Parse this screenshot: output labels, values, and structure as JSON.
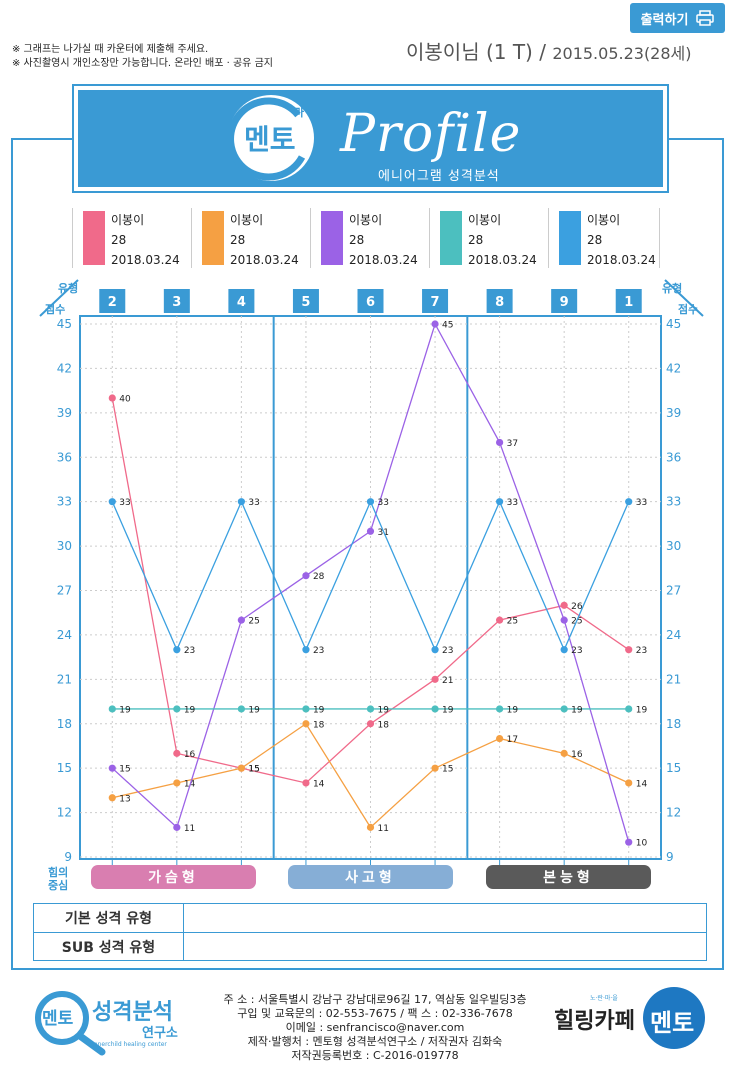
{
  "toolbar": {
    "print_label": "출력하기"
  },
  "notices": [
    "※ 그래프는 나가실 때 카운터에 제출해 주세요.",
    "※ 사진촬영시 개인소장만 가능합니다. 온라인 배포 · 공유 금지"
  ],
  "header": {
    "name": "이봉이님 (1 T) /",
    "date": "2015.05.23(28세)"
  },
  "banner": {
    "logo_text": "멘토",
    "logo_small": "마",
    "title": "Profile",
    "subtitle": "에니어그램 성격분석"
  },
  "legend": [
    {
      "name": "이봉이",
      "age": "28",
      "date": "2018.03.24",
      "color": "#f06a8a"
    },
    {
      "name": "이봉이",
      "age": "28",
      "date": "2018.03.24",
      "color": "#f5a043"
    },
    {
      "name": "이봉이",
      "age": "28",
      "date": "2018.03.24",
      "color": "#9b62e6"
    },
    {
      "name": "이봉이",
      "age": "28",
      "date": "2018.03.24",
      "color": "#4cbfbf"
    },
    {
      "name": "이봉이",
      "age": "28",
      "date": "2018.03.24",
      "color": "#3ba0e0"
    }
  ],
  "axis_labels": {
    "type_left": "유형",
    "score_left": "점수",
    "type_right": "유형",
    "score_right": "점수",
    "center_line1": "힘의",
    "center_line2": "중심"
  },
  "groups": [
    {
      "label": "가슴형",
      "color": "#d97eb0"
    },
    {
      "label": "사고형",
      "color": "#86aed6"
    },
    {
      "label": "본능형",
      "color": "#5a5a5a"
    }
  ],
  "summary": {
    "basic_label": "기본 성격 유형",
    "sub_label": "SUB 성격 유형"
  },
  "footer": {
    "lines": [
      "주 소 : 서울특별시 강남구 강남대로96길 17, 역삼동 일우빌딩3층",
      "구입 및 교육문의 : 02-553-7675 / 팩 스 : 02-336-7678",
      "이메일 : senfrancisco@naver.com",
      "제작·발행처 : 멘토형 성격분석연구소 / 저작권자 김화숙",
      "저작권등록번호 : C-2016-019778"
    ],
    "logo_left_text": "멘토",
    "logo_left_title": "성격분석",
    "logo_left_sub": "연구소",
    "logo_left_en": "Innerchild healing center",
    "logo_right_text": "힐링카페",
    "logo_right_badge": "멘토",
    "logo_right_small": "노·란·마·을"
  },
  "chart_data": {
    "type": "line",
    "categories": [
      "2",
      "3",
      "4",
      "5",
      "6",
      "7",
      "8",
      "9",
      "1"
    ],
    "ylim": [
      9,
      45
    ],
    "yticks": [
      9,
      12,
      15,
      18,
      21,
      24,
      27,
      30,
      33,
      36,
      39,
      42,
      45
    ],
    "grid": true,
    "series": [
      {
        "name": "이봉이",
        "color": "#f06a8a",
        "values": [
          40,
          16,
          15,
          14,
          18,
          21,
          25,
          26,
          23
        ]
      },
      {
        "name": "이봉이",
        "color": "#f5a043",
        "values": [
          13,
          14,
          15,
          18,
          11,
          15,
          17,
          16,
          14
        ]
      },
      {
        "name": "이봉이",
        "color": "#9b62e6",
        "values": [
          15,
          11,
          25,
          28,
          31,
          45,
          37,
          25,
          10
        ]
      },
      {
        "name": "이봉이",
        "color": "#4cbfbf",
        "values": [
          19,
          19,
          19,
          19,
          19,
          19,
          19,
          19,
          19
        ]
      },
      {
        "name": "이봉이",
        "color": "#3ba0e0",
        "values": [
          33,
          23,
          33,
          23,
          33,
          23,
          33,
          23,
          33
        ]
      }
    ]
  }
}
